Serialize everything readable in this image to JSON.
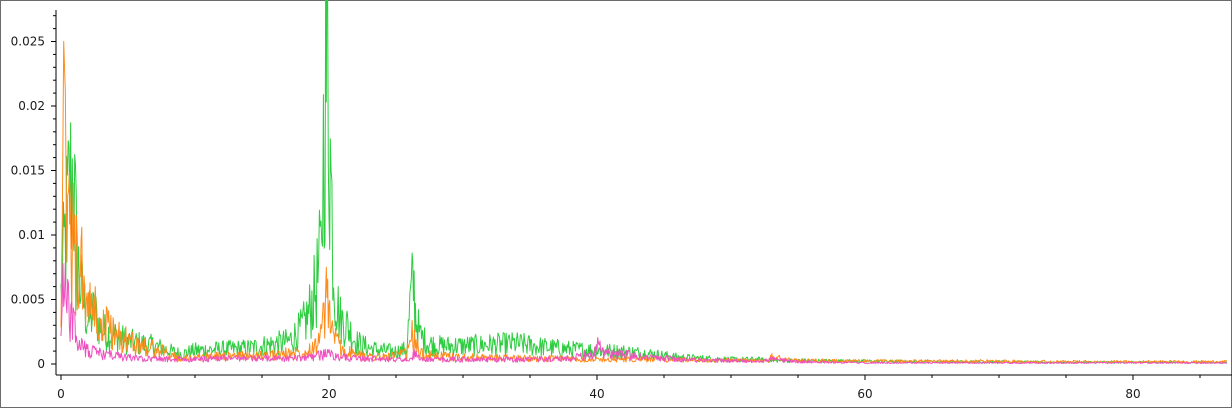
{
  "chart_data": {
    "type": "line",
    "title": "",
    "xlabel": "",
    "ylabel": "",
    "xlim": [
      0,
      87
    ],
    "ylim": [
      0,
      0.0275
    ],
    "x_ticks": [
      0,
      20,
      40,
      60,
      80
    ],
    "x_tick_labels": [
      "0",
      "20",
      "40",
      "60",
      "80"
    ],
    "y_ticks": [
      0,
      0.005,
      0.01,
      0.015,
      0.02,
      0.025
    ],
    "y_tick_labels": [
      "0",
      "0.005",
      "0.01",
      "0.015",
      "0.02",
      "0.025"
    ],
    "grid": false,
    "legend": "none",
    "series": [
      {
        "color": "#2ecc40",
        "x": [
          0,
          0.3,
          0.6,
          0.9,
          1.2,
          1.6,
          2,
          2.5,
          3,
          4,
          5,
          6,
          7,
          8,
          9,
          10,
          12,
          14,
          16,
          17,
          18,
          18.5,
          19,
          19.4,
          19.7,
          19.9,
          20.1,
          20.4,
          20.8,
          21.3,
          22,
          23,
          24,
          25,
          25.8,
          26.1,
          26.3,
          26.5,
          26.8,
          27.3,
          28,
          30,
          32,
          34,
          36,
          38,
          40,
          42,
          44,
          46,
          48,
          50,
          52,
          53,
          55,
          60,
          65,
          70,
          75,
          80,
          85,
          87
        ],
        "y": [
          0.006,
          0.011,
          0.015,
          0.017,
          0.009,
          0.006,
          0.004,
          0.0045,
          0.003,
          0.0025,
          0.002,
          0.0018,
          0.0016,
          0.0012,
          0.0009,
          0.0012,
          0.0013,
          0.0014,
          0.0018,
          0.002,
          0.0032,
          0.0045,
          0.0065,
          0.0095,
          0.025,
          0.0268,
          0.018,
          0.007,
          0.004,
          0.0035,
          0.002,
          0.0014,
          0.0012,
          0.0011,
          0.0013,
          0.0058,
          0.0072,
          0.004,
          0.0025,
          0.0019,
          0.0016,
          0.0016,
          0.0017,
          0.0018,
          0.0015,
          0.0013,
          0.0012,
          0.0011,
          0.0009,
          0.0006,
          0.0005,
          0.0004,
          0.0004,
          0.0003,
          0.0003,
          0.00025,
          0.0002,
          0.0002,
          0.00015,
          0.00015,
          0.00015,
          0.00015
        ]
      },
      {
        "color": "#ff8c1a",
        "x": [
          0,
          0.2,
          0.5,
          0.8,
          1.1,
          1.5,
          2,
          2.5,
          3,
          3.5,
          4,
          5,
          6,
          7,
          8,
          9,
          10,
          12,
          14,
          16,
          18,
          19,
          19.5,
          19.8,
          20,
          20.2,
          20.6,
          21,
          22,
          24,
          25.8,
          26.2,
          26.5,
          27,
          28,
          30,
          35,
          40,
          45,
          50,
          52.8,
          53,
          55,
          60,
          65,
          70,
          75,
          80,
          85,
          87
        ],
        "y": [
          0.008,
          0.0182,
          0.013,
          0.011,
          0.009,
          0.008,
          0.005,
          0.0045,
          0.003,
          0.0035,
          0.0025,
          0.002,
          0.0016,
          0.0013,
          0.0009,
          0.0005,
          0.0006,
          0.0007,
          0.0007,
          0.0008,
          0.0011,
          0.0016,
          0.003,
          0.0055,
          0.0048,
          0.0035,
          0.0018,
          0.0012,
          0.0008,
          0.0006,
          0.0009,
          0.0025,
          0.0015,
          0.0008,
          0.0007,
          0.0006,
          0.0005,
          0.0004,
          0.0004,
          0.0003,
          0.0003,
          0.0006,
          0.0003,
          0.00025,
          0.00025,
          0.00025,
          0.0002,
          0.0002,
          0.0002,
          0.0002
        ]
      },
      {
        "color": "#ef4fbf",
        "x": [
          0,
          0.2,
          0.5,
          0.8,
          1.2,
          1.6,
          2,
          3,
          4,
          6,
          8,
          10,
          12,
          15,
          18,
          19.6,
          20,
          20.4,
          22,
          25,
          26,
          26.4,
          27,
          30,
          35,
          38,
          39.8,
          40,
          40.5,
          42,
          44,
          45,
          48,
          50,
          52,
          53,
          55,
          60,
          70,
          80,
          87
        ],
        "y": [
          0.003,
          0.0075,
          0.005,
          0.004,
          0.002,
          0.0018,
          0.0012,
          0.0009,
          0.0007,
          0.0005,
          0.0004,
          0.0004,
          0.0005,
          0.0005,
          0.0005,
          0.0008,
          0.0012,
          0.0006,
          0.0005,
          0.0004,
          0.0004,
          0.0008,
          0.0004,
          0.0004,
          0.0004,
          0.0005,
          0.0009,
          0.0018,
          0.0009,
          0.0008,
          0.0006,
          0.0005,
          0.0003,
          0.0003,
          0.0002,
          0.0004,
          0.0002,
          0.0001,
          0.0001,
          0.0001,
          0.0001
        ]
      }
    ]
  }
}
